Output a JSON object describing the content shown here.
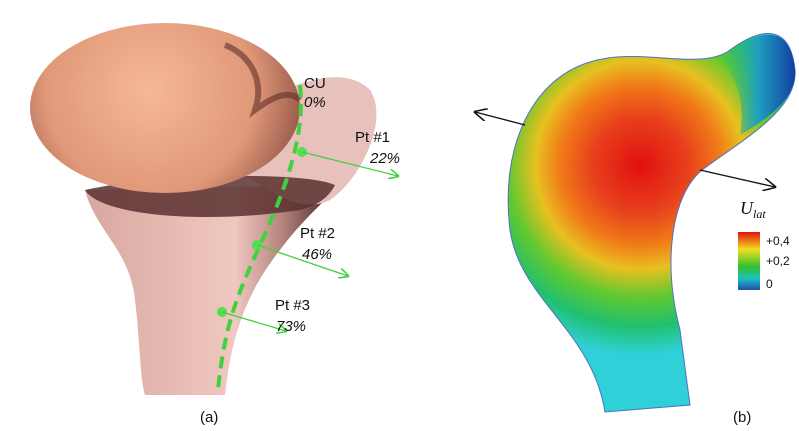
{
  "panel_a": {
    "label": "(a)",
    "points": [
      {
        "name": "CU",
        "percent": "0%"
      },
      {
        "name": "Pt #1",
        "percent": "22%"
      },
      {
        "name": "Pt #2",
        "percent": "46%"
      },
      {
        "name": "Pt #3",
        "percent": "73%"
      }
    ]
  },
  "panel_b": {
    "label": "(b)",
    "colorbar": {
      "symbol": "U",
      "subscript": "lat",
      "ticks": [
        "+0,4",
        "+0,2",
        "0"
      ]
    }
  }
}
